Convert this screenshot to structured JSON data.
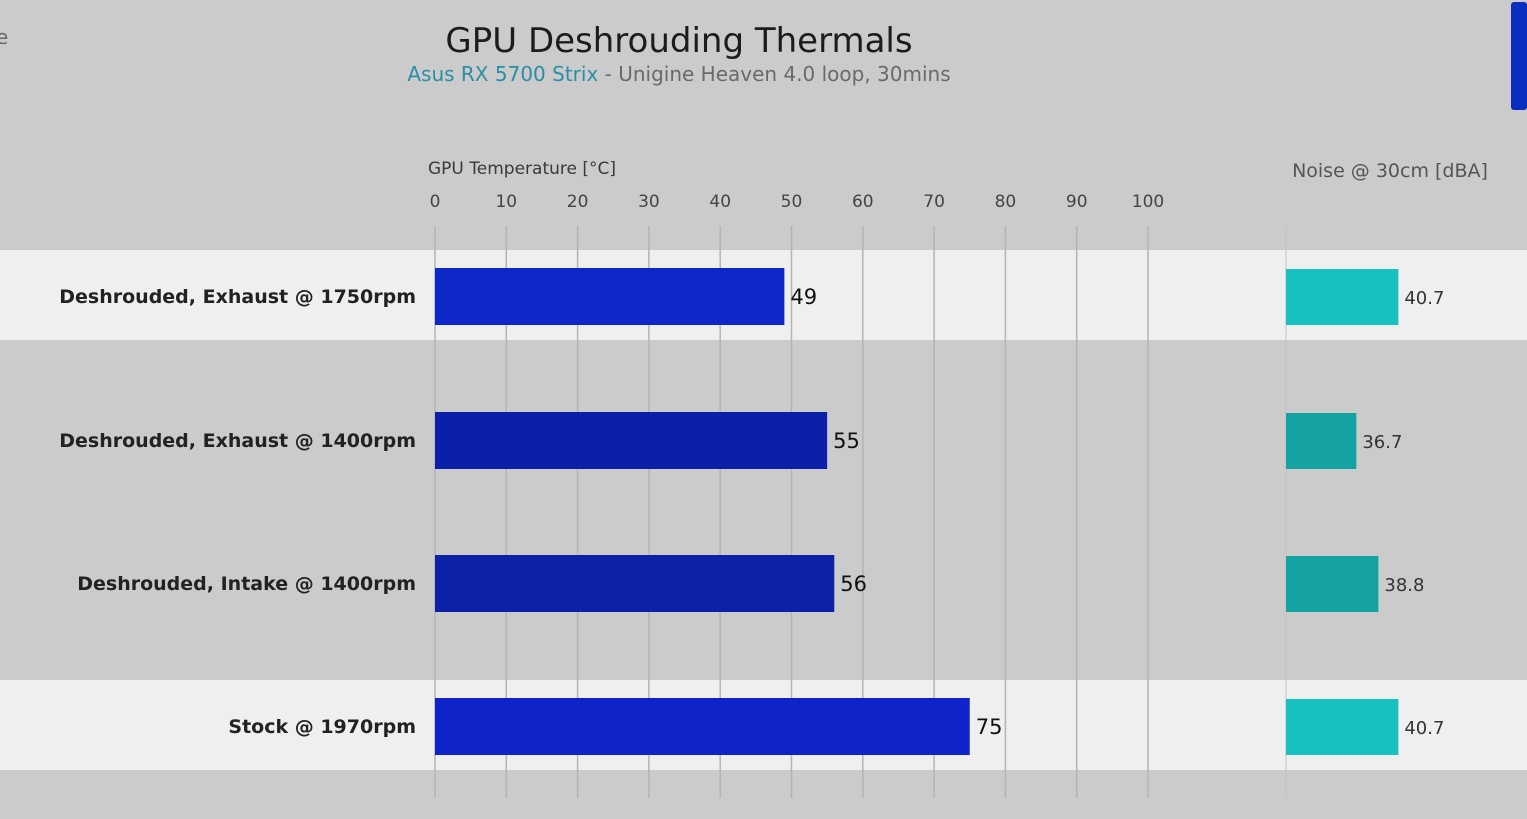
{
  "edge_fragment": "e",
  "chart_data": {
    "type": "bar",
    "title": "GPU Deshrouding Thermals",
    "subtitle_highlight": "Asus RX 5700 Strix",
    "subtitle_rest": " - Unigine Heaven 4.0 loop, 30mins",
    "categories": [
      "Deshrouded, Exhaust @ 1750rpm",
      "Deshrouded, Exhaust @ 1400rpm",
      "Deshrouded, Intake @ 1400rpm",
      "Stock @ 1970rpm"
    ],
    "series": [
      {
        "name": "GPU Temperature [°C]",
        "values": [
          49,
          55,
          56,
          75
        ],
        "xlim": [
          0,
          100
        ],
        "ticks": [
          "0",
          "10",
          "20",
          "30",
          "40",
          "50",
          "60",
          "70",
          "80",
          "90",
          "100"
        ],
        "colors": [
          "#0e27c8",
          "#0c1fa8",
          "#0c22a6",
          "#0e24c8"
        ]
      },
      {
        "name": "Noise @ 30cm [dBA]",
        "values": [
          40.7,
          36.7,
          38.8,
          40.7
        ],
        "labels": [
          "40.7",
          "36.7",
          "38.8",
          "40.7"
        ],
        "xlim": [
          30,
          45
        ],
        "colors": [
          "#17c1c0",
          "#14a3a2",
          "#14a3a2",
          "#17c1c0"
        ]
      }
    ],
    "highlighted_rows": [
      0,
      3
    ],
    "grid": true
  }
}
